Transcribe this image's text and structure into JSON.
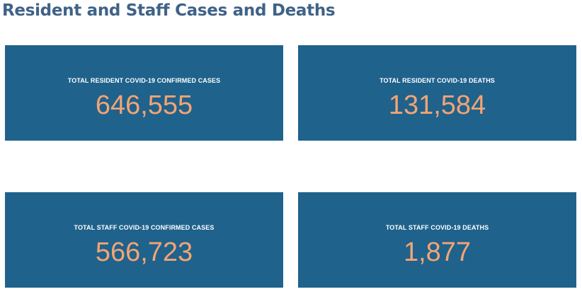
{
  "section": {
    "title": "Resident and Staff Cases and Deaths"
  },
  "cards": [
    {
      "label": "TOTAL RESIDENT COVID-19 CONFIRMED CASES",
      "value": "646,555"
    },
    {
      "label": "TOTAL RESIDENT COVID-19 DEATHS",
      "value": "131,584"
    },
    {
      "label": "TOTAL STAFF COVID-19 CONFIRMED CASES",
      "value": "566,723"
    },
    {
      "label": "TOTAL STAFF COVID-19 DEATHS",
      "value": "1,877"
    }
  ],
  "colors": {
    "title": "#3f6287",
    "card_background": "#1f628c",
    "label_text": "#ffffff",
    "value_text": "#f4a474"
  }
}
